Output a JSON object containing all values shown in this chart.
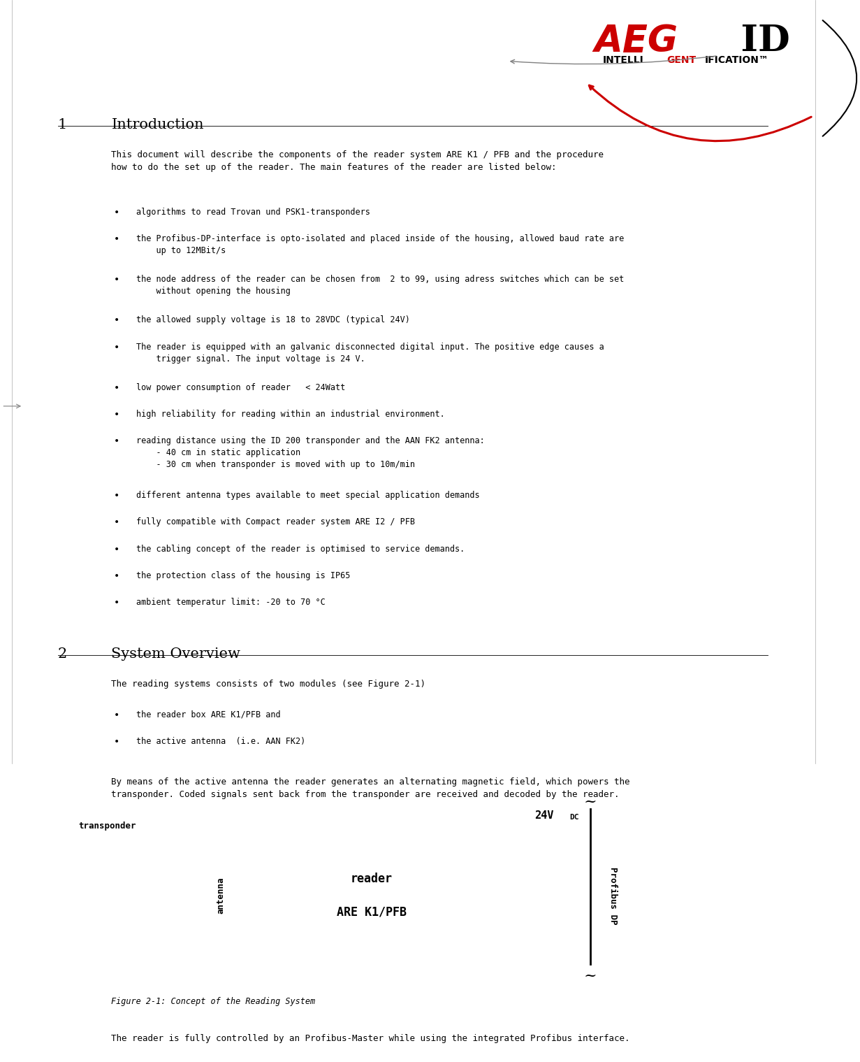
{
  "page_width": 12.31,
  "page_height": 15.19,
  "background_color": "#ffffff",
  "logo_aeg_color": "#cc0000",
  "logo_id_color": "#000000",
  "logo_intel_color": "#000000",
  "logo_gent_color": "#cc0000",
  "section1_number": "1",
  "section1_title": "Introduction",
  "section1_body": "This document will describe the components of the reader system ARE K1 / PFB and the procedure\nhow to do the set up of the reader. The main features of the reader are listed below:",
  "section1_bullets": [
    "algorithms to read Trovan und PSK1-transponders",
    "the Profibus-DP-interface is opto-isolated and placed inside of the housing, allowed baud rate are\n    up to 12MBit/s",
    "the node address of the reader can be chosen from  2 to 99, using adress switches which can be set\n    without opening the housing",
    "the allowed supply voltage is 18 to 28VDC (typical 24V)",
    "The reader is equipped with an galvanic disconnected digital input. The positive edge causes a\n    trigger signal. The input voltage is 24 V.",
    "low power consumption of reader   < 24Watt",
    "high reliability for reading within an industrial environment.",
    "reading distance using the ID 200 transponder and the AAN FK2 antenna:\n    - 40 cm in static application\n    - 30 cm when transponder is moved with up to 10m/min",
    "different antenna types available to meet special application demands",
    "fully compatible with Compact reader system ARE I2 / PFB",
    "the cabling concept of the reader is optimised to service demands.",
    "the protection class of the housing is IP65",
    "ambient temperatur limit: -20 to 70 °C"
  ],
  "section2_number": "2",
  "section2_title": "System Overview",
  "section2_body1": "The reading systems consists of two modules (see Figure 2-1)",
  "section2_bullets": [
    "the reader box ARE K1/PFB and",
    "the active antenna  (i.e. AAN FK2)"
  ],
  "section2_body2": "By means of the active antenna the reader generates an alternating magnetic field, which powers the\ntransponder. Coded signals sent back from the transponder are received and decoded by the reader.",
  "figure_caption": "Figure 2-1: Concept of the Reading System",
  "section2_footer": "The reader is fully controlled by an Profibus-Master while using the integrated Profibus interface.",
  "diagram_labels": {
    "transponder": "transponder",
    "antenna": "antenna",
    "reader_line1": "reader",
    "reader_line2": "ARE K1/PFB",
    "voltage": "24V",
    "voltage_sub": "DC",
    "profibus": "Profibus DP"
  }
}
